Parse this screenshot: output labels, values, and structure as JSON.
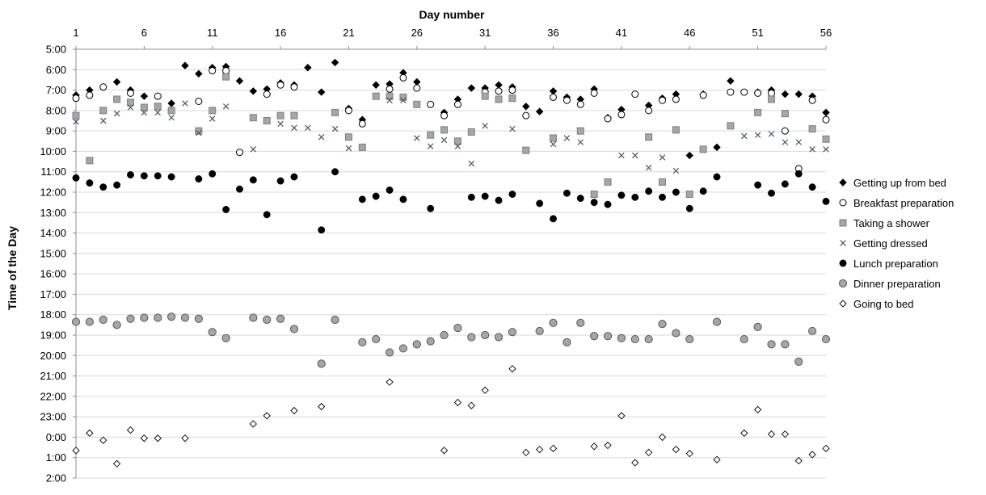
{
  "chart_data": {
    "type": "scatter",
    "title": "",
    "xlabel": "Day number",
    "ylabel": "Time of the Day",
    "x_axis_position": "top",
    "y_inverted": true,
    "grid": "horizontal",
    "legend_position": "right",
    "xlim": [
      1,
      56
    ],
    "ylim": [
      5,
      26
    ],
    "x_ticks": [
      1,
      6,
      11,
      16,
      21,
      26,
      31,
      36,
      41,
      46,
      51,
      56
    ],
    "y_ticks": [
      {
        "value": 5,
        "label": "5:00"
      },
      {
        "value": 6,
        "label": "6:00"
      },
      {
        "value": 7,
        "label": "7:00"
      },
      {
        "value": 8,
        "label": "8:00"
      },
      {
        "value": 9,
        "label": "9:00"
      },
      {
        "value": 10,
        "label": "10:00"
      },
      {
        "value": 11,
        "label": "11:00"
      },
      {
        "value": 12,
        "label": "12:00"
      },
      {
        "value": 13,
        "label": "13:00"
      },
      {
        "value": 14,
        "label": "14:00"
      },
      {
        "value": 15,
        "label": "15:00"
      },
      {
        "value": 16,
        "label": "16:00"
      },
      {
        "value": 17,
        "label": "17:00"
      },
      {
        "value": 18,
        "label": "18:00"
      },
      {
        "value": 19,
        "label": "19:00"
      },
      {
        "value": 20,
        "label": "20:00"
      },
      {
        "value": 21,
        "label": "21:00"
      },
      {
        "value": 22,
        "label": "22:00"
      },
      {
        "value": 23,
        "label": "23:00"
      },
      {
        "value": 24,
        "label": "0:00"
      },
      {
        "value": 25,
        "label": "1:00"
      },
      {
        "value": 26,
        "label": "2:00"
      }
    ],
    "series": [
      {
        "name": "Getting up from bed",
        "marker": "filled-diamond",
        "fill": "#000000",
        "stroke": "#000000",
        "x": [
          1,
          2,
          3,
          4,
          5,
          6,
          8,
          9,
          10,
          11,
          12,
          13,
          14,
          15,
          16,
          17,
          18,
          19,
          20,
          21,
          22,
          23,
          24,
          25,
          26,
          28,
          29,
          30,
          31,
          32,
          33,
          34,
          35,
          36,
          37,
          38,
          39,
          40,
          41,
          43,
          44,
          45,
          46,
          47,
          48,
          49,
          51,
          52,
          53,
          54,
          55,
          56
        ],
        "y": [
          7.25,
          7.0,
          6.85,
          6.6,
          7.0,
          7.3,
          7.65,
          5.8,
          6.2,
          5.9,
          5.85,
          6.55,
          7.05,
          6.95,
          6.65,
          6.75,
          5.9,
          7.1,
          5.65,
          7.9,
          8.45,
          6.75,
          6.7,
          6.15,
          6.6,
          8.1,
          7.45,
          6.9,
          6.9,
          6.75,
          6.85,
          7.8,
          8.05,
          7.05,
          7.35,
          7.45,
          6.95,
          8.35,
          7.95,
          7.75,
          7.4,
          7.2,
          10.2,
          7.2,
          9.8,
          6.55,
          7.1,
          7.0,
          7.2,
          7.2,
          7.3,
          8.1
        ]
      },
      {
        "name": "Breakfast preparation",
        "marker": "open-circle",
        "fill": "#ffffff",
        "stroke": "#000000",
        "x": [
          1,
          2,
          3,
          5,
          7,
          10,
          11,
          12,
          13,
          15,
          16,
          17,
          21,
          22,
          24,
          25,
          26,
          27,
          28,
          29,
          31,
          32,
          33,
          34,
          36,
          37,
          38,
          39,
          40,
          41,
          42,
          43,
          44,
          45,
          47,
          49,
          50,
          51,
          52,
          53,
          54,
          55,
          56
        ],
        "y": [
          7.4,
          7.25,
          6.85,
          7.15,
          7.3,
          7.55,
          6.05,
          6.05,
          10.05,
          7.2,
          6.75,
          6.85,
          8.0,
          8.65,
          6.95,
          6.4,
          6.9,
          7.7,
          8.25,
          7.7,
          7.1,
          7.05,
          7.0,
          8.25,
          7.35,
          7.5,
          7.7,
          7.15,
          8.4,
          8.2,
          7.2,
          8.0,
          7.5,
          7.45,
          7.25,
          7.1,
          7.1,
          7.15,
          7.15,
          9.0,
          10.85,
          7.5,
          8.45
        ]
      },
      {
        "name": "Taking a shower",
        "marker": "filled-square",
        "fill": "#a6a6a6",
        "stroke": "#7f7f7f",
        "x": [
          1,
          2,
          3,
          4,
          5,
          6,
          7,
          8,
          10,
          11,
          12,
          14,
          15,
          16,
          17,
          20,
          21,
          22,
          23,
          24,
          25,
          26,
          27,
          28,
          29,
          30,
          31,
          32,
          33,
          34,
          36,
          38,
          39,
          40,
          43,
          44,
          45,
          46,
          47,
          49,
          51,
          52,
          53,
          55,
          56
        ],
        "y": [
          8.25,
          10.45,
          8.0,
          7.45,
          7.6,
          7.85,
          7.8,
          8.0,
          9.0,
          8.0,
          6.35,
          8.35,
          8.5,
          8.25,
          8.25,
          8.1,
          9.3,
          9.8,
          7.3,
          7.3,
          7.35,
          7.7,
          9.2,
          8.95,
          9.5,
          9.05,
          7.3,
          7.45,
          7.4,
          9.95,
          9.35,
          9.0,
          12.1,
          11.5,
          9.3,
          11.5,
          8.95,
          12.1,
          9.9,
          8.75,
          8.1,
          7.45,
          8.15,
          8.9,
          9.4
        ]
      },
      {
        "name": "Getting dressed",
        "marker": "x",
        "fill": "#44546a",
        "stroke": "#44546a",
        "x": [
          1,
          3,
          4,
          5,
          6,
          7,
          8,
          9,
          10,
          11,
          12,
          14,
          16,
          17,
          18,
          19,
          20,
          21,
          24,
          25,
          26,
          27,
          28,
          29,
          30,
          31,
          33,
          36,
          37,
          38,
          41,
          42,
          43,
          44,
          45,
          50,
          51,
          52,
          53,
          54,
          55,
          56
        ],
        "y": [
          8.55,
          8.5,
          8.15,
          7.85,
          8.1,
          8.1,
          8.35,
          7.65,
          9.1,
          8.4,
          7.8,
          9.9,
          8.65,
          8.85,
          8.85,
          9.3,
          8.9,
          9.85,
          7.5,
          7.5,
          9.35,
          9.75,
          9.45,
          9.75,
          10.6,
          8.75,
          8.9,
          9.65,
          9.35,
          9.55,
          10.2,
          10.2,
          10.8,
          10.3,
          10.95,
          9.25,
          9.2,
          9.15,
          9.55,
          9.55,
          9.9,
          9.9
        ]
      },
      {
        "name": "Lunch preparation",
        "marker": "filled-circle",
        "fill": "#000000",
        "stroke": "#000000",
        "x": [
          1,
          2,
          3,
          4,
          5,
          6,
          7,
          8,
          10,
          11,
          12,
          13,
          14,
          15,
          16,
          17,
          19,
          20,
          22,
          23,
          24,
          25,
          27,
          30,
          31,
          32,
          33,
          35,
          36,
          37,
          38,
          39,
          40,
          41,
          42,
          43,
          44,
          45,
          46,
          47,
          48,
          51,
          52,
          53,
          54,
          55,
          56
        ],
        "y": [
          11.3,
          11.55,
          11.75,
          11.65,
          11.15,
          11.2,
          11.2,
          11.25,
          11.35,
          11.1,
          12.85,
          11.85,
          11.4,
          13.1,
          11.45,
          11.25,
          13.85,
          11.0,
          12.35,
          12.2,
          11.9,
          12.35,
          12.8,
          12.25,
          12.2,
          12.4,
          12.1,
          12.55,
          13.3,
          12.05,
          12.3,
          12.5,
          12.6,
          12.15,
          12.25,
          11.95,
          12.25,
          12.0,
          12.8,
          11.95,
          11.25,
          11.65,
          12.05,
          11.6,
          11.1,
          11.75,
          12.45
        ]
      },
      {
        "name": "Dinner preparation",
        "marker": "filled-circle-gray",
        "fill": "#a6a6a6",
        "stroke": "#595959",
        "x": [
          1,
          2,
          3,
          4,
          5,
          6,
          7,
          8,
          9,
          10,
          11,
          12,
          14,
          15,
          16,
          17,
          19,
          20,
          22,
          23,
          24,
          25,
          26,
          27,
          28,
          29,
          30,
          31,
          32,
          33,
          35,
          36,
          37,
          38,
          39,
          40,
          41,
          42,
          43,
          44,
          45,
          46,
          48,
          50,
          51,
          52,
          53,
          54,
          55,
          56
        ],
        "y": [
          18.35,
          18.35,
          18.25,
          18.5,
          18.2,
          18.15,
          18.15,
          18.1,
          18.15,
          18.2,
          18.85,
          19.15,
          18.15,
          18.25,
          18.2,
          18.7,
          20.4,
          18.25,
          19.35,
          19.2,
          19.85,
          19.65,
          19.45,
          19.3,
          19.0,
          18.65,
          19.1,
          19.0,
          19.1,
          18.85,
          18.8,
          18.4,
          19.35,
          18.4,
          19.05,
          19.05,
          19.15,
          19.2,
          19.2,
          18.45,
          18.9,
          19.2,
          18.35,
          19.2,
          18.6,
          19.45,
          19.45,
          20.3,
          18.8,
          19.2
        ]
      },
      {
        "name": "Going to bed",
        "marker": "open-diamond",
        "fill": "#ffffff",
        "stroke": "#000000",
        "x": [
          1,
          2,
          3,
          4,
          5,
          6,
          7,
          9,
          14,
          15,
          17,
          19,
          24,
          28,
          29,
          30,
          31,
          33,
          34,
          35,
          36,
          39,
          40,
          41,
          42,
          43,
          44,
          45,
          46,
          48,
          50,
          51,
          52,
          53,
          54,
          55,
          56
        ],
        "y": [
          24.65,
          23.8,
          24.15,
          25.3,
          23.65,
          24.05,
          24.05,
          24.05,
          23.35,
          22.95,
          22.7,
          22.5,
          21.3,
          24.65,
          22.3,
          22.45,
          21.7,
          20.65,
          24.75,
          24.6,
          24.55,
          24.45,
          24.4,
          22.95,
          25.25,
          24.75,
          24.0,
          24.6,
          24.8,
          25.1,
          23.8,
          22.65,
          23.85,
          23.85,
          25.15,
          24.85,
          24.55
        ]
      }
    ]
  }
}
